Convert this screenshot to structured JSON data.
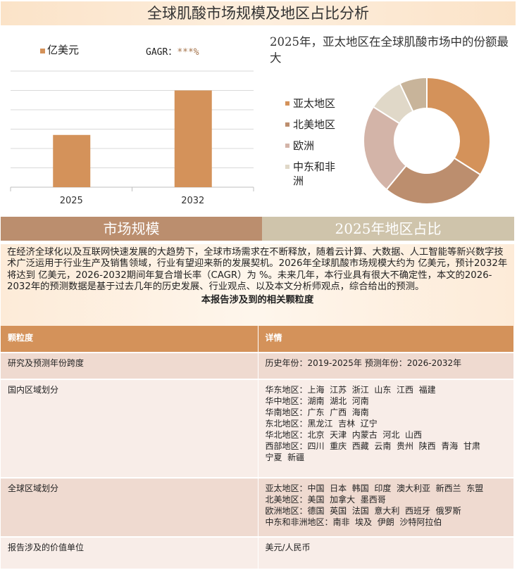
{
  "title": "全球肌酸市场规模及地区占比分析",
  "bar_legend": "亿美元",
  "cagr_label": "GAGR：",
  "cagr_value": "***%",
  "pie_title": "2025年，亚太地区在全球肌酸市场中的份额最大",
  "chart_data": [
    {
      "type": "bar",
      "categories": [
        "2025",
        "2032"
      ],
      "series": [
        {
          "name": "亿美元",
          "values": [
            2.7,
            5.0
          ]
        }
      ],
      "ylim": [
        0,
        6
      ],
      "grid": true,
      "legend": "top-left",
      "color": "#d4925a"
    },
    {
      "type": "pie",
      "donut": true,
      "labels": [
        "亚太地区",
        "北美地区",
        "欧洲",
        "中东和非洲",
        ""
      ],
      "values": [
        34,
        27,
        23,
        9,
        7
      ],
      "colors": [
        "#d4925a",
        "#bc8e6e",
        "#d3b4a8",
        "#e0d8c8",
        "#c8b49a"
      ],
      "legend": "left"
    }
  ],
  "sections": {
    "left": "市场规模",
    "right": "2025年地区占比"
  },
  "paragraph": "在经济全球化以及互联网快速发展的大趋势下，全球市场需求在不断释放，随着云计算、大数据、人工智能等新兴数字技术广泛运用于行业生产及销售领域，行业有望迎来新的发展契机。2026年全球肌酸市场规模大约为 亿美元，预计2032年将达到 亿美元，2026-2032期间年复合增长率（CAGR）为 %。未来几年，本行业具有很大不确定性，本文的2026-2032年的预测数据是基于过去几年的历史发展、行业观点、以及本文分析师观点，综合给出的预测。",
  "table_title": "本报告涉及到的相关颗粒度",
  "table": {
    "headers": [
      "颗粒度",
      "详情"
    ],
    "rows": [
      {
        "label": "研究及预测年份跨度",
        "lines": [
          "历史年份：2019-2025年 预测年份：2026-2032年"
        ]
      },
      {
        "label": "国内区域划分",
        "lines": [
          "华东地区：上海  江苏  浙江  山东  江西  福建",
          "华中地区：湖南  湖北  河南",
          "华南地区：广东  广西  海南",
          "东北地区：黑龙江  吉林  辽宁",
          "华北地区：北京  天津  内蒙古  河北  山西",
          "西部地区：四川  重庆  西藏  云南  贵州  陕西  青海  甘肃",
          "宁夏  新疆"
        ]
      },
      {
        "label": "全球区域划分",
        "lines": [
          "亚太地区：中国  日本  韩国  印度  澳大利亚  新西兰  东盟",
          "北美地区：美国  加拿大  墨西哥",
          "欧洲地区：德国  英国  法国  意大利  西班牙  俄罗斯",
          "中东和非洲地区：南非  埃及  伊朗  沙特阿拉伯"
        ]
      },
      {
        "label": "报告涉及的价值单位",
        "lines": [
          "美元/人民币"
        ]
      }
    ]
  }
}
